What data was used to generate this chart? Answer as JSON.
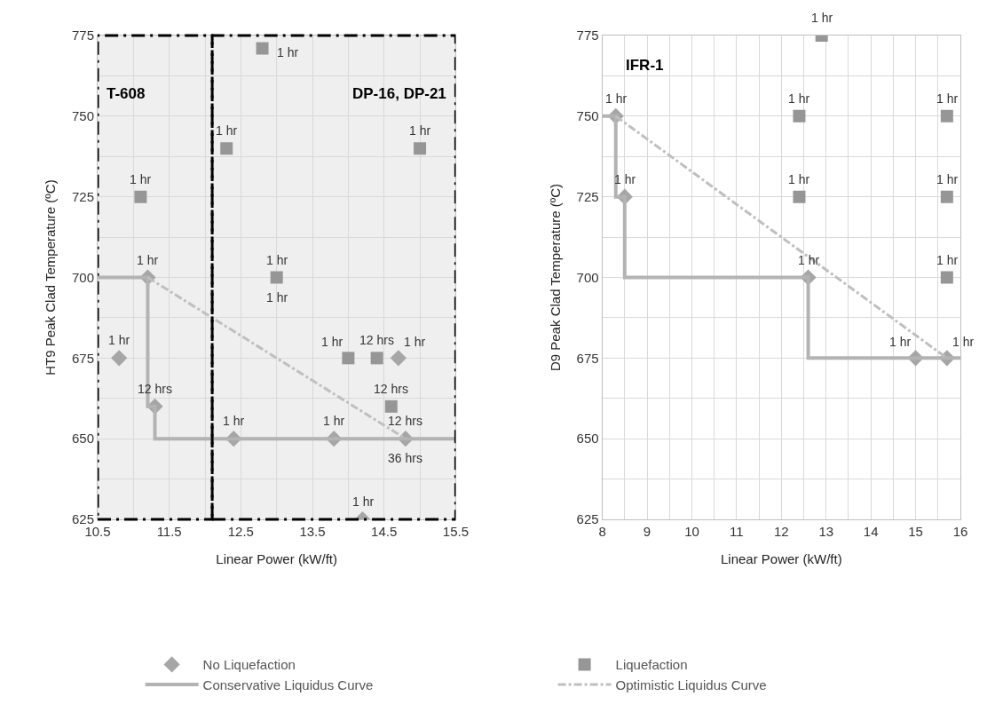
{
  "chart_data": [
    {
      "type": "scatter",
      "xlabel": "Linear Power (kW/ft)",
      "ylabel": "HT9 Peak Clad Temperature (ºC)",
      "xlim": [
        10.5,
        15.5
      ],
      "xticks": [
        10.5,
        {
          "value": 11,
          "label": null
        },
        11.5,
        {
          "value": 12,
          "label": null
        },
        12.5,
        {
          "value": 13,
          "label": null
        },
        13.5,
        {
          "value": 14,
          "label": null
        },
        14.5,
        {
          "value": 15,
          "label": null
        },
        15.5
      ],
      "ylim": [
        625,
        775
      ],
      "yticks": [
        625,
        {
          "value": 637.5,
          "label": null
        },
        650,
        {
          "value": 662.5,
          "label": null
        },
        675,
        {
          "value": 687.5,
          "label": null
        },
        700,
        {
          "value": 712.5,
          "label": null
        },
        725,
        {
          "value": 737.5,
          "label": null
        },
        750,
        {
          "value": 762.5,
          "label": null
        },
        775
      ],
      "grid": true,
      "legend": "bottom",
      "series": [
        {
          "name": "No Liquefaction",
          "type": "scatter",
          "marker": "diamond",
          "color": "#a6a6a6",
          "x": [
            10.8,
            11.2,
            11.3,
            12.4,
            13.8,
            14.2,
            14.7,
            14.8
          ],
          "values": [
            675,
            700,
            660,
            650,
            650,
            625,
            675,
            650
          ]
        },
        {
          "name": "Liquefaction",
          "type": "scatter",
          "marker": "square",
          "color": "#969696",
          "x": [
            12.8,
            12.3,
            15.0,
            11.1,
            13.0,
            14.0,
            14.4,
            14.6
          ],
          "values": [
            771,
            740,
            740,
            725,
            700,
            675,
            675,
            660
          ]
        },
        {
          "name": "Conservative Liquidus Curve",
          "type": "line",
          "marker": "none",
          "line_style": "solid",
          "color": "#b3b3b3",
          "x": [
            10.5,
            11.2,
            11.2,
            11.3,
            11.3,
            15.5
          ],
          "values": [
            700,
            700,
            660,
            660,
            650,
            650
          ]
        },
        {
          "name": "Optimistic Liquidus Curve",
          "type": "line",
          "marker": "none",
          "line_style": "dashed",
          "color": "#bfbfbf",
          "x": [
            11.2,
            14.8
          ],
          "values": [
            700,
            650
          ]
        }
      ],
      "bands": [
        {
          "axis": "x",
          "from": 10.5,
          "to": 12.1,
          "label": "T-608",
          "color": "#000000"
        },
        {
          "axis": "x",
          "from": 12.1,
          "to": 15.5,
          "label": "DP-16, DP-21",
          "color": "#000000"
        }
      ],
      "annotations": [
        {
          "text": "1 hr",
          "x": 12.8,
          "y": 771
        },
        {
          "text": "1 hr",
          "x": 12.3,
          "y": 740
        },
        {
          "text": "1 hr",
          "x": 15.0,
          "y": 740
        },
        {
          "text": "1 hr",
          "x": 11.1,
          "y": 725
        },
        {
          "text": "1 hr",
          "x": 11.2,
          "y": 700
        },
        {
          "text": "1 hr",
          "x": 13.0,
          "y": 700
        },
        {
          "text": "1 hr",
          "x": 13.0,
          "y": 700
        },
        {
          "text": "1 hr",
          "x": 10.8,
          "y": 675
        },
        {
          "text": "1 hr",
          "x": 14.0,
          "y": 675
        },
        {
          "text": "12 hrs",
          "x": 14.4,
          "y": 675
        },
        {
          "text": "1 hr",
          "x": 14.7,
          "y": 675
        },
        {
          "text": "12 hrs",
          "x": 11.3,
          "y": 660
        },
        {
          "text": "12 hrs",
          "x": 14.6,
          "y": 660
        },
        {
          "text": "1 hr",
          "x": 12.4,
          "y": 650
        },
        {
          "text": "1 hr",
          "x": 13.8,
          "y": 650
        },
        {
          "text": "12 hrs",
          "x": 14.8,
          "y": 650
        },
        {
          "text": "36 hrs",
          "x": 14.8,
          "y": 650
        },
        {
          "text": "1 hr",
          "x": 14.2,
          "y": 625
        }
      ]
    },
    {
      "type": "scatter",
      "title": "IFR-1",
      "xlabel": "Linear Power (kW/ft)",
      "ylabel": "D9 Peak Clad Temperature (ºC)",
      "xlim": [
        8,
        16
      ],
      "xticks": [
        8,
        {
          "value": 8.5,
          "label": null
        },
        9,
        {
          "value": 9.5,
          "label": null
        },
        10,
        {
          "value": 10.5,
          "label": null
        },
        11,
        {
          "value": 11.5,
          "label": null
        },
        12,
        {
          "value": 12.5,
          "label": null
        },
        13,
        {
          "value": 13.5,
          "label": null
        },
        14,
        {
          "value": 14.5,
          "label": null
        },
        15,
        {
          "value": 15.5,
          "label": null
        },
        16
      ],
      "ylim": [
        625,
        775
      ],
      "yticks": [
        625,
        {
          "value": 637.5,
          "label": null
        },
        650,
        {
          "value": 662.5,
          "label": null
        },
        675,
        {
          "value": 687.5,
          "label": null
        },
        700,
        {
          "value": 712.5,
          "label": null
        },
        725,
        {
          "value": 737.5,
          "label": null
        },
        750,
        {
          "value": 762.5,
          "label": null
        },
        775
      ],
      "grid": true,
      "series": [
        {
          "type": "scatter",
          "marker": "diamond",
          "color": "#a6a6a6",
          "x": [
            8.3,
            8.5,
            12.6,
            15.0,
            15.7
          ],
          "values": [
            750,
            725,
            700,
            675,
            675
          ]
        },
        {
          "type": "scatter",
          "marker": "square",
          "color": "#969696",
          "x": [
            12.9,
            12.4,
            15.7,
            12.4,
            15.7,
            15.7
          ],
          "values": [
            775,
            750,
            750,
            725,
            725,
            700
          ]
        },
        {
          "type": "line",
          "marker": "none",
          "line_style": "solid",
          "color": "#b3b3b3",
          "x": [
            8,
            8.3,
            8.3,
            8.5,
            8.5,
            12.6,
            12.6,
            16
          ],
          "values": [
            750,
            750,
            725,
            725,
            700,
            700,
            675,
            675
          ]
        },
        {
          "type": "line",
          "marker": "none",
          "line_style": "dashed",
          "color": "#bfbfbf",
          "x": [
            8.3,
            15.7
          ],
          "values": [
            750,
            675
          ]
        }
      ],
      "annotations": [
        {
          "text": "1 hr",
          "x": 12.9,
          "y": 775
        },
        {
          "text": "1 hr",
          "x": 8.3,
          "y": 750
        },
        {
          "text": "1 hr",
          "x": 12.4,
          "y": 750
        },
        {
          "text": "1 hr",
          "x": 15.7,
          "y": 750
        },
        {
          "text": "1 hr",
          "x": 8.5,
          "y": 725
        },
        {
          "text": "1 hr",
          "x": 12.4,
          "y": 725
        },
        {
          "text": "1 hr",
          "x": 15.7,
          "y": 725
        },
        {
          "text": "1 hr",
          "x": 15.7,
          "y": 700
        },
        {
          "text": "1 hr",
          "x": 12.6,
          "y": 700
        },
        {
          "text": "1 hr",
          "x": 15.0,
          "y": 675
        },
        {
          "text": "1 hr",
          "x": 15.7,
          "y": 675
        }
      ]
    }
  ]
}
